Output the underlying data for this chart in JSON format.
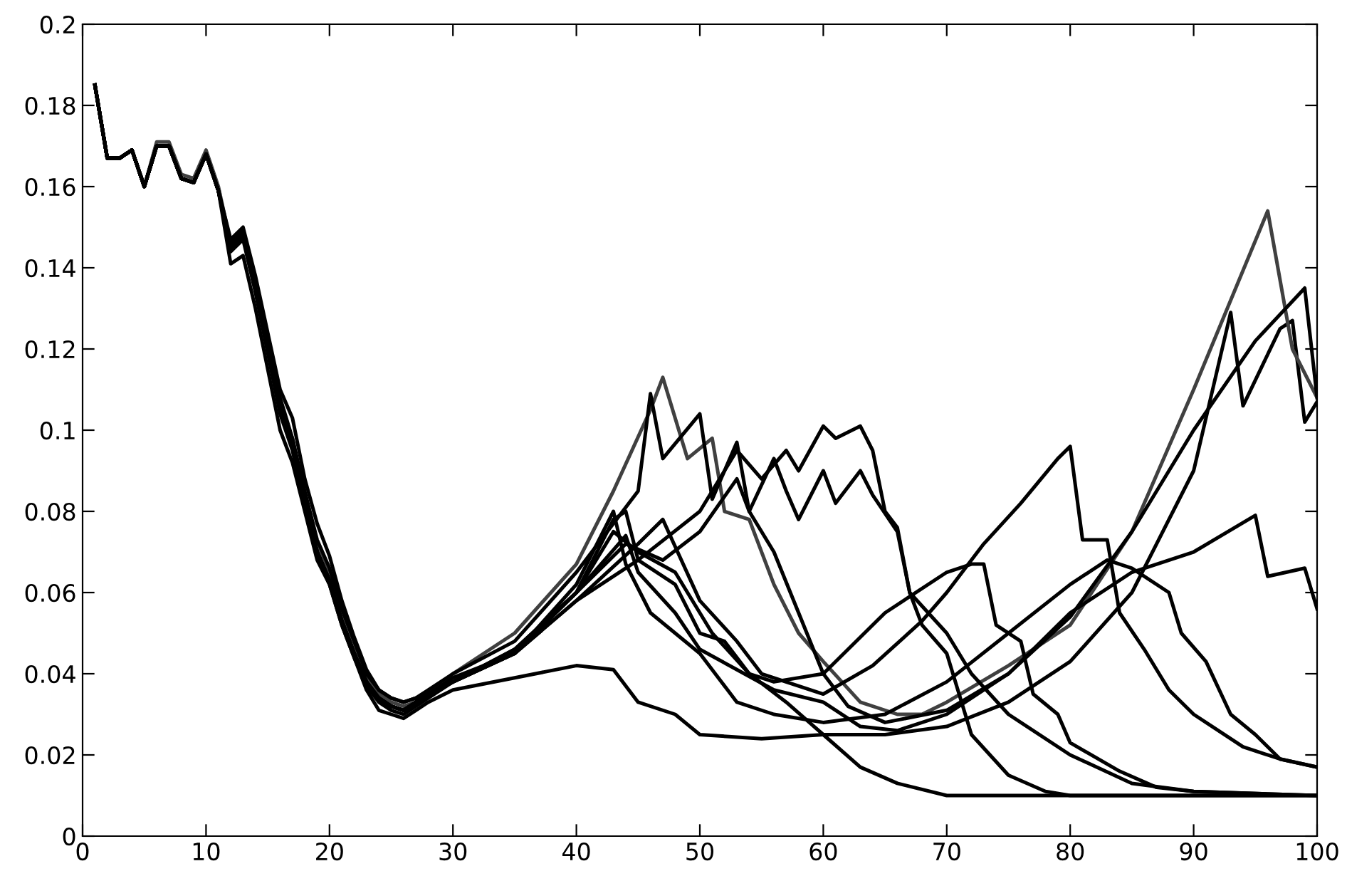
{
  "chart_data": {
    "type": "line",
    "xlim": [
      0,
      100
    ],
    "ylim": [
      0,
      0.2
    ],
    "xticks": [
      0,
      10,
      20,
      30,
      40,
      50,
      60,
      70,
      80,
      90,
      100
    ],
    "yticks": [
      0,
      0.02,
      0.04,
      0.06,
      0.08,
      0.1,
      0.12,
      0.14,
      0.16,
      0.18,
      0.2
    ],
    "grid": false,
    "series": [
      {
        "color": "#000000",
        "x": [
          1,
          2,
          3,
          4,
          5,
          6,
          7,
          8,
          9,
          10,
          11,
          12,
          13,
          14,
          15,
          16,
          17,
          18,
          19,
          20,
          21,
          22,
          23,
          24,
          25,
          26,
          27,
          28,
          30,
          35,
          40,
          43,
          45,
          48,
          50,
          55,
          60,
          65,
          70,
          75,
          80,
          85,
          90,
          93,
          94,
          97,
          98,
          99,
          100
        ],
        "values": [
          0.185,
          0.167,
          0.167,
          0.169,
          0.16,
          0.17,
          0.17,
          0.162,
          0.161,
          0.168,
          0.159,
          0.141,
          0.143,
          0.13,
          0.115,
          0.1,
          0.092,
          0.08,
          0.068,
          0.062,
          0.052,
          0.044,
          0.036,
          0.031,
          0.03,
          0.029,
          0.031,
          0.033,
          0.036,
          0.039,
          0.042,
          0.041,
          0.033,
          0.03,
          0.025,
          0.024,
          0.025,
          0.025,
          0.027,
          0.033,
          0.043,
          0.06,
          0.09,
          0.129,
          0.106,
          0.125,
          0.127,
          0.102,
          0.107
        ]
      },
      {
        "color": "#404040",
        "x": [
          1,
          2,
          3,
          4,
          5,
          6,
          7,
          8,
          9,
          10,
          11,
          12,
          13,
          14,
          15,
          16,
          17,
          18,
          19,
          20,
          21,
          22,
          23,
          24,
          25,
          26,
          27,
          28,
          30,
          35,
          40,
          43,
          46,
          47,
          49,
          51,
          52,
          54,
          56,
          58,
          60,
          63,
          66,
          68,
          70,
          75,
          78,
          80,
          85,
          90,
          96,
          98,
          100
        ],
        "values": [
          0.185,
          0.167,
          0.167,
          0.169,
          0.16,
          0.171,
          0.171,
          0.163,
          0.162,
          0.169,
          0.16,
          0.146,
          0.149,
          0.136,
          0.121,
          0.106,
          0.098,
          0.083,
          0.071,
          0.064,
          0.054,
          0.046,
          0.039,
          0.035,
          0.033,
          0.032,
          0.033,
          0.035,
          0.04,
          0.05,
          0.067,
          0.085,
          0.105,
          0.113,
          0.093,
          0.098,
          0.08,
          0.078,
          0.062,
          0.05,
          0.043,
          0.033,
          0.03,
          0.03,
          0.033,
          0.042,
          0.048,
          0.052,
          0.075,
          0.11,
          0.154,
          0.12,
          0.108
        ]
      },
      {
        "color": "#000000",
        "x": [
          1,
          2,
          3,
          4,
          5,
          6,
          7,
          8,
          9,
          10,
          11,
          12,
          13,
          14,
          15,
          16,
          17,
          18,
          19,
          20,
          21,
          22,
          23,
          24,
          25,
          26,
          27,
          28,
          30,
          35,
          40,
          45,
          46,
          47,
          50,
          51,
          53,
          54,
          56,
          58,
          60,
          62,
          65,
          70,
          75,
          80,
          85,
          90,
          95,
          99,
          100
        ],
        "values": [
          0.185,
          0.167,
          0.167,
          0.169,
          0.16,
          0.17,
          0.17,
          0.162,
          0.161,
          0.168,
          0.159,
          0.147,
          0.15,
          0.138,
          0.124,
          0.11,
          0.103,
          0.088,
          0.077,
          0.069,
          0.058,
          0.049,
          0.041,
          0.036,
          0.034,
          0.033,
          0.034,
          0.036,
          0.04,
          0.048,
          0.065,
          0.085,
          0.109,
          0.093,
          0.104,
          0.083,
          0.097,
          0.08,
          0.07,
          0.055,
          0.04,
          0.032,
          0.028,
          0.031,
          0.04,
          0.054,
          0.075,
          0.1,
          0.122,
          0.135,
          0.108
        ]
      },
      {
        "color": "#000000",
        "x": [
          1,
          2,
          3,
          4,
          5,
          6,
          7,
          8,
          9,
          10,
          11,
          12,
          13,
          14,
          15,
          16,
          17,
          18,
          19,
          20,
          21,
          22,
          23,
          24,
          25,
          26,
          27,
          28,
          30,
          35,
          40,
          45,
          50,
          53,
          55,
          57,
          58,
          60,
          61,
          63,
          64,
          65,
          66,
          67,
          68,
          70,
          72,
          75,
          78,
          80,
          100
        ],
        "values": [
          0.185,
          0.167,
          0.167,
          0.169,
          0.16,
          0.17,
          0.17,
          0.162,
          0.161,
          0.168,
          0.159,
          0.145,
          0.148,
          0.135,
          0.12,
          0.105,
          0.096,
          0.082,
          0.07,
          0.063,
          0.053,
          0.045,
          0.038,
          0.034,
          0.032,
          0.031,
          0.033,
          0.035,
          0.038,
          0.045,
          0.058,
          0.068,
          0.08,
          0.095,
          0.088,
          0.095,
          0.09,
          0.101,
          0.098,
          0.101,
          0.095,
          0.08,
          0.076,
          0.06,
          0.052,
          0.045,
          0.025,
          0.015,
          0.011,
          0.01,
          0.01
        ]
      },
      {
        "color": "#000000",
        "x": [
          1,
          2,
          3,
          4,
          5,
          6,
          7,
          8,
          9,
          10,
          11,
          12,
          13,
          14,
          15,
          16,
          17,
          18,
          19,
          20,
          21,
          22,
          23,
          24,
          25,
          26,
          27,
          28,
          30,
          35,
          40,
          44,
          47,
          50,
          53,
          54,
          56,
          57,
          58,
          60,
          61,
          63,
          64,
          66,
          67,
          70,
          72,
          75,
          80,
          85,
          90,
          100
        ],
        "values": [
          0.185,
          0.167,
          0.167,
          0.169,
          0.16,
          0.17,
          0.17,
          0.162,
          0.161,
          0.168,
          0.159,
          0.144,
          0.147,
          0.134,
          0.119,
          0.104,
          0.095,
          0.081,
          0.069,
          0.062,
          0.052,
          0.044,
          0.037,
          0.033,
          0.031,
          0.03,
          0.032,
          0.034,
          0.038,
          0.045,
          0.06,
          0.072,
          0.068,
          0.075,
          0.088,
          0.08,
          0.093,
          0.085,
          0.078,
          0.09,
          0.082,
          0.09,
          0.084,
          0.075,
          0.06,
          0.05,
          0.04,
          0.03,
          0.02,
          0.013,
          0.011,
          0.01
        ]
      },
      {
        "color": "#000000",
        "x": [
          1,
          2,
          3,
          4,
          5,
          6,
          7,
          8,
          9,
          10,
          11,
          12,
          13,
          14,
          15,
          16,
          17,
          18,
          19,
          20,
          21,
          22,
          23,
          24,
          25,
          26,
          27,
          28,
          30,
          35,
          40,
          45,
          47,
          50,
          53,
          55,
          60,
          64,
          68,
          70,
          73,
          76,
          79,
          80,
          81,
          83,
          84,
          86,
          88,
          90,
          94,
          97,
          100
        ],
        "values": [
          0.185,
          0.167,
          0.167,
          0.169,
          0.16,
          0.17,
          0.17,
          0.162,
          0.161,
          0.168,
          0.159,
          0.145,
          0.148,
          0.135,
          0.12,
          0.105,
          0.096,
          0.082,
          0.07,
          0.063,
          0.053,
          0.045,
          0.038,
          0.034,
          0.032,
          0.031,
          0.033,
          0.035,
          0.038,
          0.045,
          0.058,
          0.072,
          0.078,
          0.058,
          0.048,
          0.04,
          0.035,
          0.042,
          0.053,
          0.06,
          0.072,
          0.082,
          0.093,
          0.096,
          0.073,
          0.073,
          0.055,
          0.046,
          0.036,
          0.03,
          0.022,
          0.019,
          0.017
        ]
      },
      {
        "color": "#000000",
        "x": [
          1,
          2,
          3,
          4,
          5,
          6,
          7,
          8,
          9,
          10,
          11,
          12,
          13,
          14,
          15,
          16,
          17,
          18,
          19,
          20,
          21,
          22,
          23,
          24,
          25,
          26,
          27,
          28,
          30,
          35,
          40,
          43,
          44,
          46,
          50,
          53,
          56,
          60,
          65,
          70,
          75,
          80,
          83,
          85,
          88,
          89,
          91,
          93,
          95,
          97,
          100
        ],
        "values": [
          0.185,
          0.167,
          0.167,
          0.169,
          0.16,
          0.17,
          0.17,
          0.162,
          0.161,
          0.168,
          0.159,
          0.146,
          0.149,
          0.136,
          0.122,
          0.108,
          0.098,
          0.085,
          0.073,
          0.066,
          0.056,
          0.048,
          0.04,
          0.036,
          0.034,
          0.033,
          0.034,
          0.035,
          0.039,
          0.045,
          0.062,
          0.08,
          0.067,
          0.055,
          0.045,
          0.033,
          0.03,
          0.028,
          0.03,
          0.038,
          0.05,
          0.062,
          0.068,
          0.066,
          0.06,
          0.05,
          0.043,
          0.03,
          0.025,
          0.019,
          0.017
        ]
      },
      {
        "color": "#000000",
        "x": [
          1,
          2,
          3,
          4,
          5,
          6,
          7,
          8,
          9,
          10,
          11,
          12,
          13,
          14,
          15,
          16,
          17,
          18,
          19,
          20,
          21,
          22,
          23,
          24,
          25,
          26,
          27,
          28,
          30,
          35,
          40,
          44,
          45,
          48,
          50,
          53,
          56,
          60,
          63,
          66,
          70,
          75,
          80,
          85,
          90,
          95,
          96,
          99,
          100
        ],
        "values": [
          0.185,
          0.167,
          0.167,
          0.169,
          0.16,
          0.17,
          0.17,
          0.162,
          0.161,
          0.168,
          0.159,
          0.145,
          0.148,
          0.135,
          0.12,
          0.105,
          0.096,
          0.082,
          0.07,
          0.063,
          0.053,
          0.045,
          0.038,
          0.034,
          0.032,
          0.031,
          0.033,
          0.035,
          0.038,
          0.045,
          0.06,
          0.074,
          0.065,
          0.055,
          0.046,
          0.041,
          0.036,
          0.033,
          0.027,
          0.026,
          0.03,
          0.04,
          0.055,
          0.065,
          0.07,
          0.079,
          0.064,
          0.066,
          0.056
        ]
      },
      {
        "color": "#000000",
        "x": [
          1,
          2,
          3,
          4,
          5,
          6,
          7,
          8,
          9,
          10,
          11,
          12,
          13,
          14,
          15,
          16,
          17,
          18,
          19,
          20,
          21,
          22,
          23,
          24,
          25,
          26,
          27,
          28,
          30,
          35,
          40,
          43,
          44,
          45,
          48,
          50,
          52,
          54,
          56,
          60,
          65,
          70,
          72,
          73,
          74,
          76,
          77,
          79,
          80,
          84,
          87,
          90,
          100
        ],
        "values": [
          0.185,
          0.167,
          0.167,
          0.169,
          0.16,
          0.17,
          0.17,
          0.162,
          0.161,
          0.168,
          0.159,
          0.145,
          0.148,
          0.135,
          0.12,
          0.105,
          0.096,
          0.082,
          0.07,
          0.063,
          0.053,
          0.045,
          0.038,
          0.034,
          0.032,
          0.031,
          0.033,
          0.035,
          0.038,
          0.046,
          0.06,
          0.078,
          0.08,
          0.068,
          0.062,
          0.05,
          0.048,
          0.04,
          0.038,
          0.04,
          0.055,
          0.065,
          0.067,
          0.067,
          0.052,
          0.048,
          0.035,
          0.03,
          0.023,
          0.016,
          0.012,
          0.011,
          0.01
        ]
      },
      {
        "color": "#000000",
        "x": [
          1,
          2,
          3,
          4,
          5,
          6,
          7,
          8,
          9,
          10,
          11,
          12,
          13,
          14,
          15,
          16,
          17,
          18,
          19,
          20,
          21,
          22,
          23,
          24,
          25,
          26,
          27,
          28,
          30,
          35,
          40,
          43,
          45,
          48,
          51,
          54,
          57,
          60,
          63,
          66,
          70,
          100
        ],
        "values": [
          0.185,
          0.167,
          0.167,
          0.169,
          0.16,
          0.17,
          0.17,
          0.162,
          0.161,
          0.168,
          0.159,
          0.145,
          0.148,
          0.135,
          0.12,
          0.105,
          0.096,
          0.082,
          0.07,
          0.063,
          0.053,
          0.045,
          0.038,
          0.034,
          0.032,
          0.031,
          0.033,
          0.035,
          0.038,
          0.046,
          0.06,
          0.075,
          0.07,
          0.065,
          0.05,
          0.04,
          0.033,
          0.025,
          0.017,
          0.013,
          0.01,
          0.01
        ]
      }
    ]
  }
}
